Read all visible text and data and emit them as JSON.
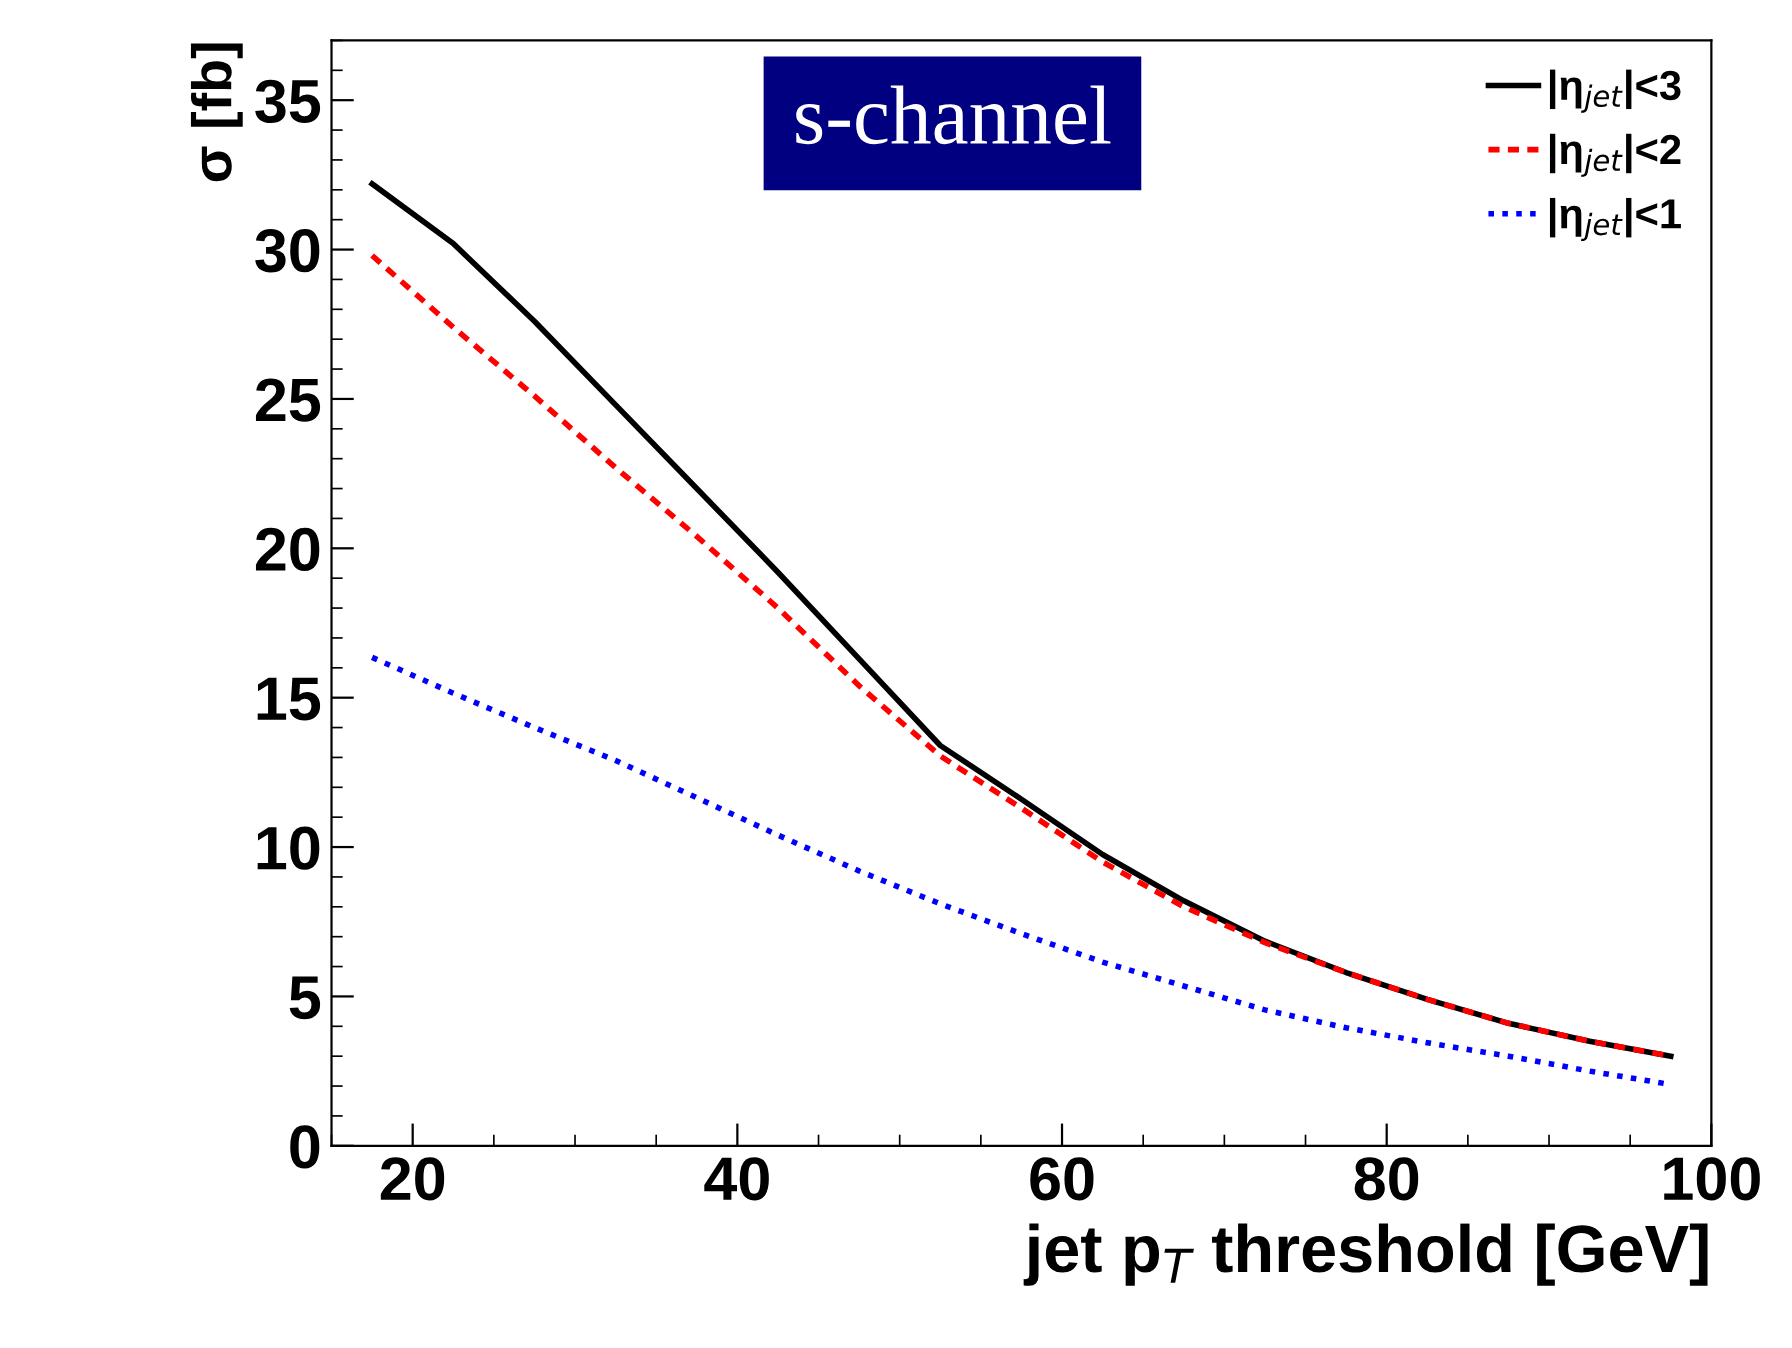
{
  "chart_data": {
    "type": "line",
    "xlabel": "jet p$_{T}$ threshold [GeV]",
    "ylabel": "σ [fb]",
    "annotations": [
      "s-channel"
    ],
    "x": [
      17.5,
      22.5,
      27.5,
      32.5,
      37.5,
      42.5,
      47.5,
      52.5,
      57.5,
      62.5,
      67.5,
      72.5,
      77.5,
      82.5,
      87.5,
      92.5,
      97.5
    ],
    "series": [
      {
        "name": "|η$_{jet}$|<3",
        "color": "#000000",
        "line_style": "solid",
        "values": [
          32.2,
          30.2,
          27.6,
          24.8,
          22.0,
          19.2,
          16.3,
          13.4,
          11.6,
          9.75,
          8.2,
          6.85,
          5.8,
          4.9,
          4.1,
          3.5,
          3.0
        ]
      },
      {
        "name": "|η$_{jet}$|<2",
        "color": "#ff0000",
        "line_style": "dashed",
        "values": [
          29.8,
          27.4,
          25.1,
          22.7,
          20.4,
          18.0,
          15.4,
          13.05,
          11.3,
          9.5,
          8.0,
          6.8,
          5.8,
          4.9,
          4.1,
          3.5,
          3.0
        ]
      },
      {
        "name": "|η$_{jet}$|<1",
        "color": "#0000ff",
        "line_style": "dotted",
        "values": [
          16.35,
          15.15,
          14.0,
          12.9,
          11.65,
          10.4,
          9.2,
          8.1,
          7.1,
          6.15,
          5.35,
          4.55,
          3.95,
          3.45,
          3.0,
          2.5,
          2.05
        ]
      }
    ],
    "xlim": [
      15,
      100
    ],
    "xticks": [
      20,
      40,
      60,
      80,
      100
    ],
    "ylim": [
      0,
      37
    ],
    "yticks": [
      0,
      5,
      10,
      15,
      20,
      25,
      30,
      35
    ],
    "grid": false,
    "legend": "top right",
    "marker": "none"
  }
}
